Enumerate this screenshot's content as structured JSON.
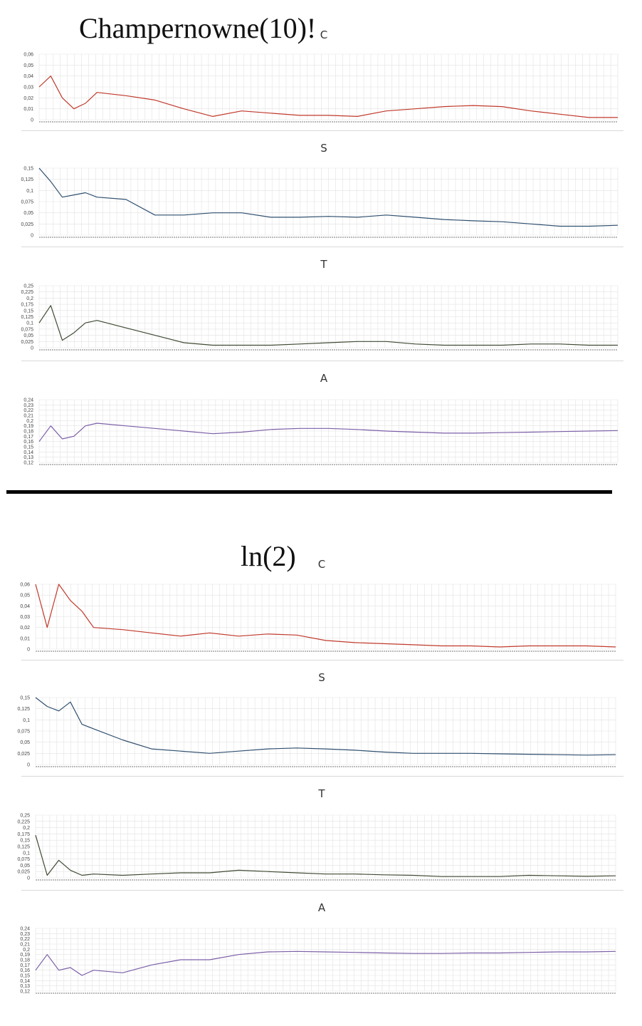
{
  "groups": [
    {
      "title": "Champernowne(10)!",
      "panels": [
        {
          "label": "C",
          "ticks": [
            "0,06",
            "0,05",
            "0,04",
            "0,03",
            "0,02",
            "0,01",
            "0"
          ],
          "color": "#c0392b"
        },
        {
          "label": "S",
          "ticks": [
            "0,15",
            "0,125",
            "0,1",
            "0,075",
            "0,05",
            "0,025",
            "0"
          ],
          "color": "#2f4f6f"
        },
        {
          "label": "T",
          "ticks": [
            "0,25",
            "0,225",
            "0,2",
            "0,175",
            "0,15",
            "0,125",
            "0,1",
            "0,075",
            "0,05",
            "0,025",
            "0"
          ],
          "color": "#3f4a33"
        },
        {
          "label": "A",
          "ticks": [
            "0,24",
            "0,23",
            "0,22",
            "0,21",
            "0,2",
            "0,19",
            "0,18",
            "0,17",
            "0,16",
            "0,15",
            "0,14",
            "0,13",
            "0,12"
          ],
          "color": "#7b5ea7"
        }
      ]
    },
    {
      "title": "ln(2)",
      "panels": [
        {
          "label": "C",
          "ticks": [
            "0,06",
            "0,05",
            "0,04",
            "0,03",
            "0,02",
            "0,01",
            "0"
          ],
          "color": "#c0392b"
        },
        {
          "label": "S",
          "ticks": [
            "0,15",
            "0,125",
            "0,1",
            "0,075",
            "0,05",
            "0,025",
            "0"
          ],
          "color": "#2f4f6f"
        },
        {
          "label": "T",
          "ticks": [
            "0,25",
            "0,225",
            "0,2",
            "0,175",
            "0,15",
            "0,125",
            "0,1",
            "0,075",
            "0,05",
            "0,025",
            "0"
          ],
          "color": "#3f4a33"
        },
        {
          "label": "A",
          "ticks": [
            "0,24",
            "0,23",
            "0,22",
            "0,21",
            "0,2",
            "0,19",
            "0,18",
            "0,17",
            "0,16",
            "0,15",
            "0,14",
            "0,13",
            "0,12"
          ],
          "color": "#7b5ea7"
        }
      ]
    }
  ],
  "chart_data": [
    {
      "type": "line",
      "title": "Champernowne(10)! C",
      "ylim": [
        0,
        0.06
      ],
      "grid": true,
      "x": [
        0,
        2,
        4,
        6,
        8,
        10,
        15,
        20,
        25,
        30,
        35,
        40,
        45,
        50,
        55,
        60,
        65,
        70,
        75,
        80,
        85,
        90,
        95,
        100
      ],
      "series": [
        {
          "values": [
            0.03,
            0.04,
            0.02,
            0.01,
            0.015,
            0.025,
            0.022,
            0.018,
            0.01,
            0.003,
            0.008,
            0.006,
            0.004,
            0.004,
            0.003,
            0.008,
            0.01,
            0.012,
            0.013,
            0.012,
            0.008,
            0.005,
            0.002,
            0.002
          ]
        }
      ]
    },
    {
      "type": "line",
      "title": "Champernowne(10)! S",
      "ylim": [
        0,
        0.15
      ],
      "grid": true,
      "x": [
        0,
        2,
        4,
        6,
        8,
        10,
        15,
        20,
        25,
        30,
        35,
        40,
        45,
        50,
        55,
        60,
        65,
        70,
        75,
        80,
        85,
        90,
        95,
        100
      ],
      "series": [
        {
          "values": [
            0.15,
            0.12,
            0.085,
            0.09,
            0.095,
            0.085,
            0.08,
            0.045,
            0.045,
            0.05,
            0.05,
            0.04,
            0.04,
            0.042,
            0.04,
            0.045,
            0.04,
            0.035,
            0.032,
            0.03,
            0.025,
            0.02,
            0.02,
            0.022
          ]
        }
      ]
    },
    {
      "type": "line",
      "title": "Champernowne(10)! T",
      "ylim": [
        0,
        0.25
      ],
      "grid": true,
      "x": [
        0,
        2,
        4,
        6,
        8,
        10,
        15,
        20,
        25,
        30,
        35,
        40,
        45,
        50,
        55,
        60,
        65,
        70,
        75,
        80,
        85,
        90,
        95,
        100
      ],
      "series": [
        {
          "values": [
            0.1,
            0.17,
            0.03,
            0.06,
            0.1,
            0.11,
            0.08,
            0.05,
            0.02,
            0.01,
            0.01,
            0.01,
            0.015,
            0.02,
            0.025,
            0.025,
            0.015,
            0.01,
            0.01,
            0.01,
            0.015,
            0.015,
            0.01,
            0.01
          ]
        }
      ]
    },
    {
      "type": "line",
      "title": "Champernowne(10)! A",
      "ylim": [
        0.12,
        0.24
      ],
      "grid": true,
      "x": [
        0,
        2,
        4,
        6,
        8,
        10,
        15,
        20,
        25,
        30,
        35,
        40,
        45,
        50,
        55,
        60,
        65,
        70,
        75,
        80,
        85,
        90,
        95,
        100
      ],
      "series": [
        {
          "values": [
            0.16,
            0.19,
            0.165,
            0.17,
            0.19,
            0.195,
            0.19,
            0.185,
            0.18,
            0.175,
            0.178,
            0.183,
            0.185,
            0.185,
            0.183,
            0.18,
            0.178,
            0.176,
            0.176,
            0.177,
            0.178,
            0.179,
            0.18,
            0.181
          ]
        }
      ]
    },
    {
      "type": "line",
      "title": "ln(2) C",
      "ylim": [
        0,
        0.06
      ],
      "grid": true,
      "x": [
        0,
        2,
        4,
        6,
        8,
        10,
        15,
        20,
        25,
        30,
        35,
        40,
        45,
        50,
        55,
        60,
        65,
        70,
        75,
        80,
        85,
        90,
        95,
        100
      ],
      "series": [
        {
          "values": [
            0.06,
            0.02,
            0.06,
            0.045,
            0.035,
            0.02,
            0.018,
            0.015,
            0.012,
            0.015,
            0.012,
            0.014,
            0.013,
            0.008,
            0.006,
            0.005,
            0.004,
            0.003,
            0.003,
            0.002,
            0.003,
            0.003,
            0.003,
            0.002
          ]
        }
      ]
    },
    {
      "type": "line",
      "title": "ln(2) S",
      "ylim": [
        0,
        0.15
      ],
      "grid": true,
      "x": [
        0,
        2,
        4,
        6,
        8,
        10,
        15,
        20,
        25,
        30,
        35,
        40,
        45,
        50,
        55,
        60,
        65,
        70,
        75,
        80,
        85,
        90,
        95,
        100
      ],
      "series": [
        {
          "values": [
            0.15,
            0.13,
            0.12,
            0.14,
            0.09,
            0.08,
            0.055,
            0.035,
            0.03,
            0.025,
            0.03,
            0.035,
            0.037,
            0.035,
            0.032,
            0.028,
            0.025,
            0.025,
            0.025,
            0.024,
            0.023,
            0.022,
            0.021,
            0.022
          ]
        }
      ]
    },
    {
      "type": "line",
      "title": "ln(2) T",
      "ylim": [
        0,
        0.25
      ],
      "grid": true,
      "x": [
        0,
        2,
        4,
        6,
        8,
        10,
        15,
        20,
        25,
        30,
        35,
        40,
        45,
        50,
        55,
        60,
        65,
        70,
        75,
        80,
        85,
        90,
        95,
        100
      ],
      "series": [
        {
          "values": [
            0.17,
            0.01,
            0.07,
            0.03,
            0.01,
            0.015,
            0.01,
            0.015,
            0.02,
            0.02,
            0.03,
            0.025,
            0.02,
            0.015,
            0.015,
            0.012,
            0.01,
            0.005,
            0.005,
            0.005,
            0.01,
            0.008,
            0.006,
            0.008
          ]
        }
      ]
    },
    {
      "type": "line",
      "title": "ln(2) A",
      "ylim": [
        0.12,
        0.24
      ],
      "grid": true,
      "x": [
        0,
        2,
        4,
        6,
        8,
        10,
        15,
        20,
        25,
        30,
        35,
        40,
        45,
        50,
        55,
        60,
        65,
        70,
        75,
        80,
        85,
        90,
        95,
        100
      ],
      "series": [
        {
          "values": [
            0.16,
            0.19,
            0.16,
            0.165,
            0.15,
            0.16,
            0.155,
            0.17,
            0.18,
            0.18,
            0.19,
            0.195,
            0.196,
            0.195,
            0.194,
            0.193,
            0.192,
            0.192,
            0.193,
            0.193,
            0.194,
            0.195,
            0.195,
            0.196
          ]
        }
      ]
    }
  ]
}
